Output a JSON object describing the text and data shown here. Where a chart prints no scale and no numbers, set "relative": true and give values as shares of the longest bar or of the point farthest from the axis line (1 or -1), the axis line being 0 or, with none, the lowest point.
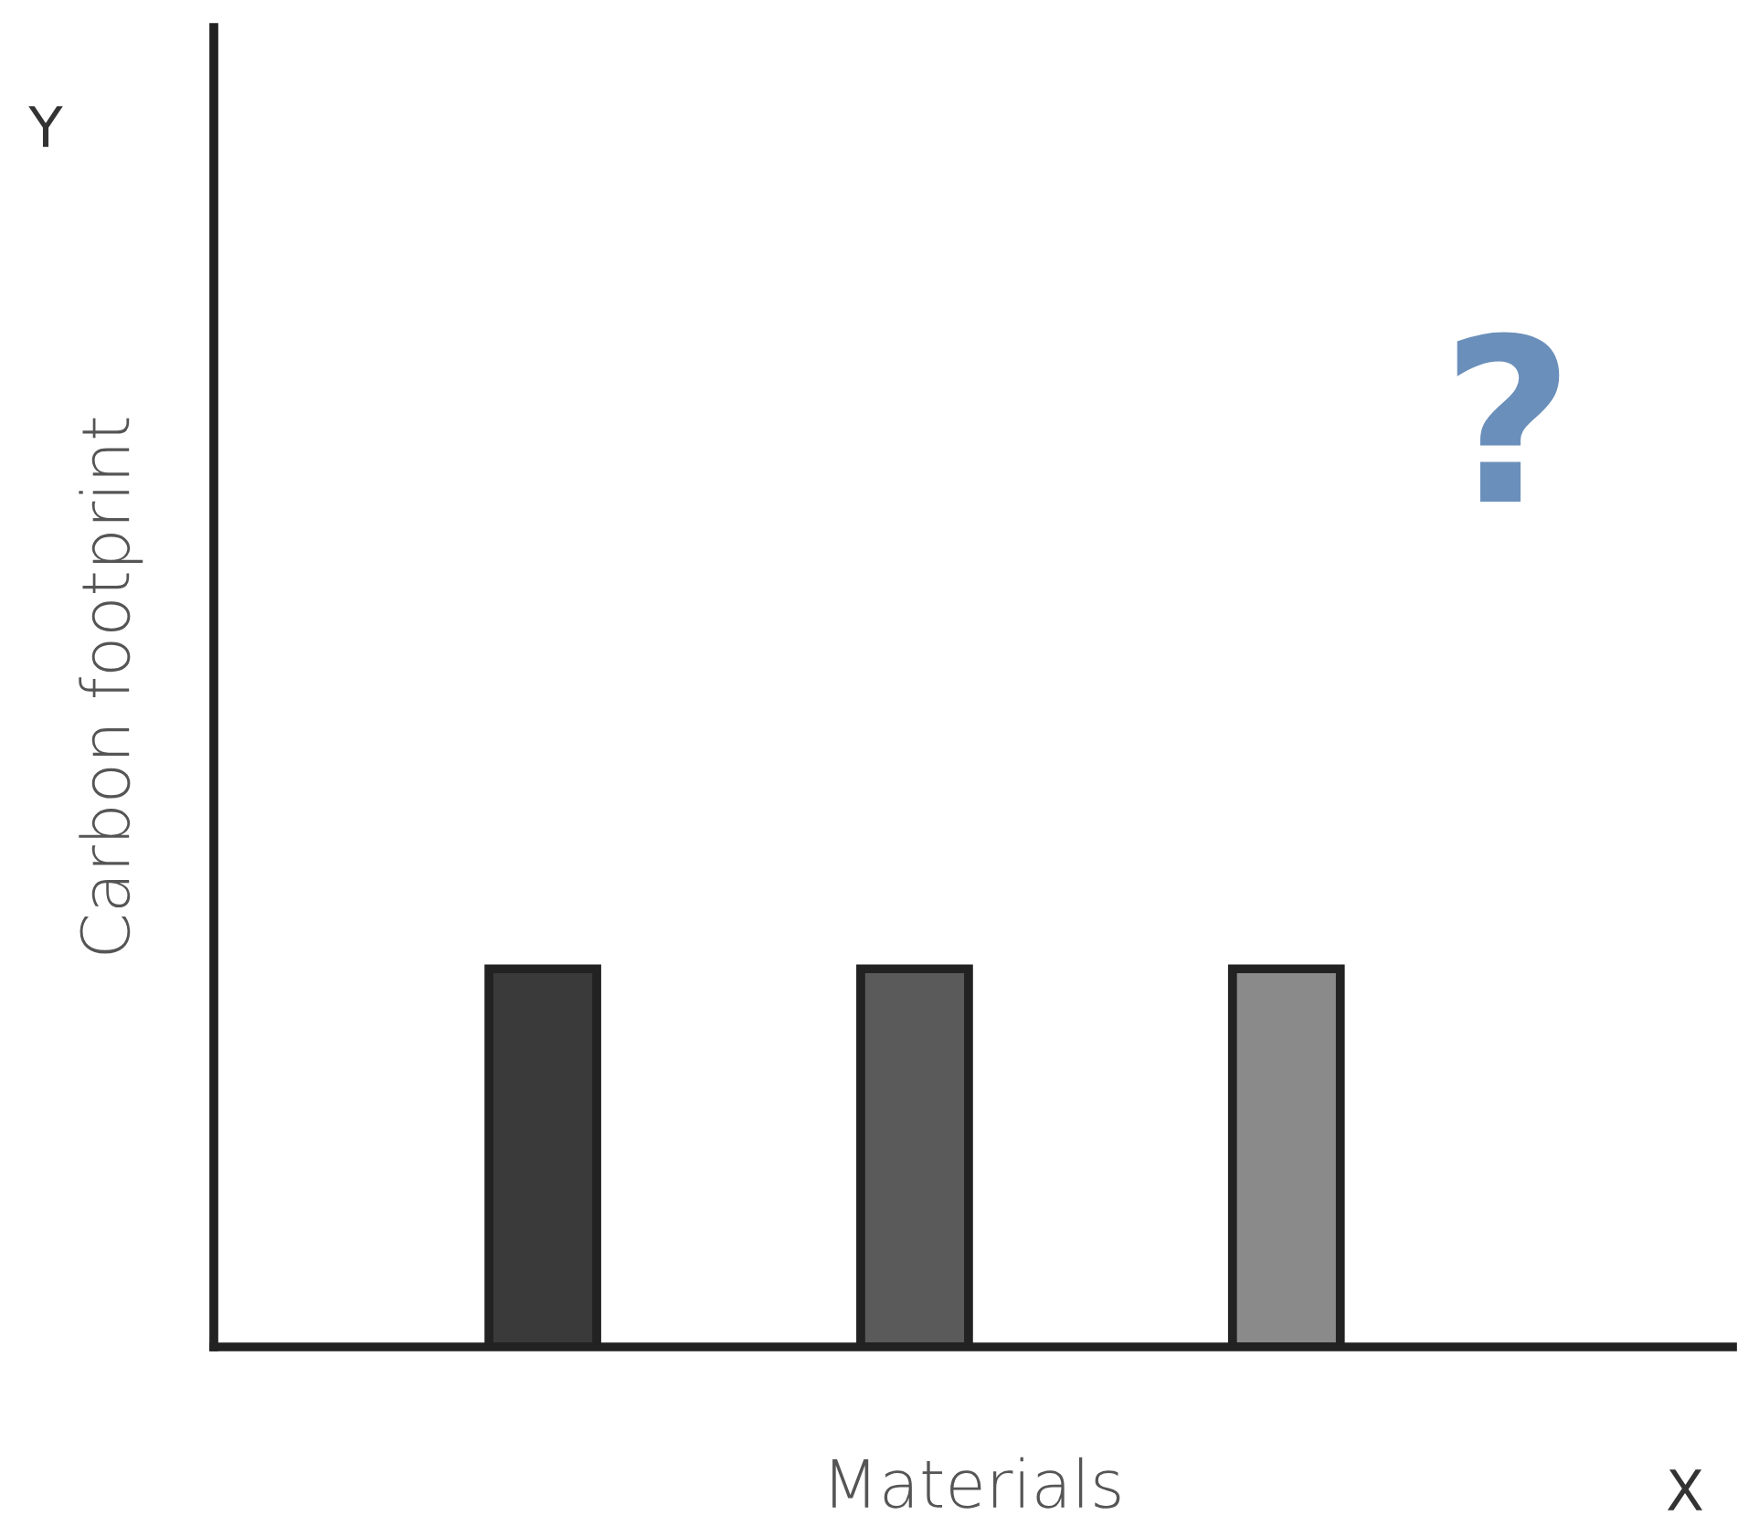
{
  "chart_data": {
    "type": "bar",
    "relative": true,
    "xlabel": "Materials",
    "ylabel": "Carbon footprint",
    "categories": [
      null,
      null,
      null
    ],
    "values": [
      1,
      1,
      1
    ],
    "colors": [
      "#3a3a3a",
      "#5a5a5a",
      "#8a8a8a"
    ],
    "annotations": [
      "Y",
      "X",
      "?"
    ],
    "grid": false,
    "legend": false
  }
}
